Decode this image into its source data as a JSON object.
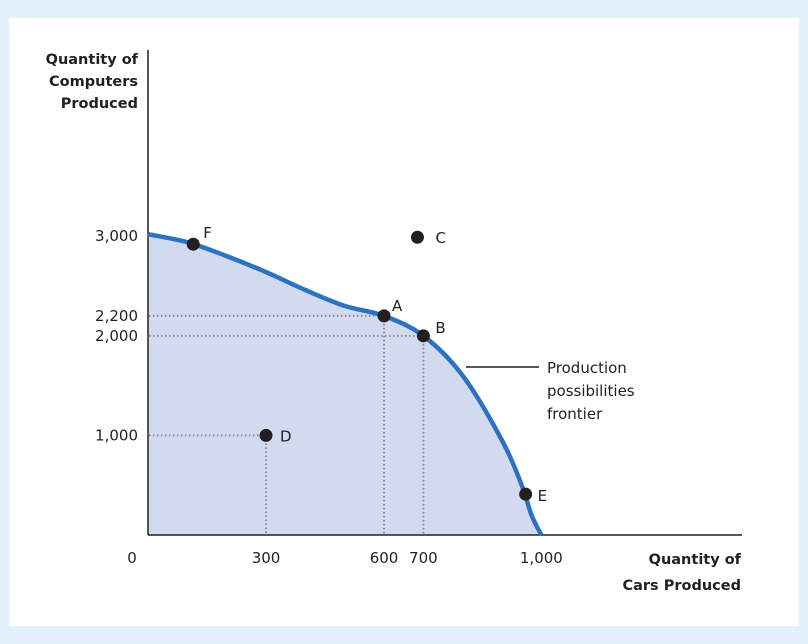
{
  "chart_data": {
    "type": "line",
    "xlabel": [
      "Quantity of",
      "Cars Produced"
    ],
    "ylabel": [
      "Quantity of",
      "Computers",
      "Produced"
    ],
    "xlim": [
      0,
      1510
    ],
    "ylim": [
      0,
      4870
    ],
    "origin_label": "0",
    "x_tick_labels": [
      {
        "value": 300,
        "label": "300"
      },
      {
        "value": 600,
        "label": "600"
      },
      {
        "value": 700,
        "label": "700"
      },
      {
        "value": 1000,
        "label": "1,000"
      }
    ],
    "y_tick_labels": [
      {
        "value": 1000,
        "label": "1,000"
      },
      {
        "value": 2000,
        "label": "2,000"
      },
      {
        "value": 2200,
        "label": "2,200"
      },
      {
        "value": 3000,
        "label": "3,000"
      }
    ],
    "series": [
      {
        "curve_color": "#2b72c2",
        "fill_color": "#d2daf0",
        "x": [
          0,
          100,
          200,
          300,
          400,
          500,
          600,
          700,
          800,
          900,
          950,
          975,
          1000
        ],
        "y": [
          3020,
          2940,
          2800,
          2640,
          2460,
          2300,
          2200,
          2000,
          1600,
          950,
          500,
          200,
          0
        ]
      }
    ],
    "points": [
      {
        "label": "F",
        "x": 115,
        "y": 2920
      },
      {
        "label": "C",
        "x": 685,
        "y": 2990
      },
      {
        "label": "A",
        "x": 600,
        "y": 2200
      },
      {
        "label": "B",
        "x": 700,
        "y": 2000
      },
      {
        "label": "D",
        "x": 300,
        "y": 1000
      },
      {
        "label": "E",
        "x": 960,
        "y": 410
      }
    ],
    "dotted_guides": [
      "A",
      "B",
      "D"
    ],
    "annotation": [
      "Production",
      "possibilities",
      "frontier"
    ],
    "grid": false,
    "legend": "none"
  }
}
